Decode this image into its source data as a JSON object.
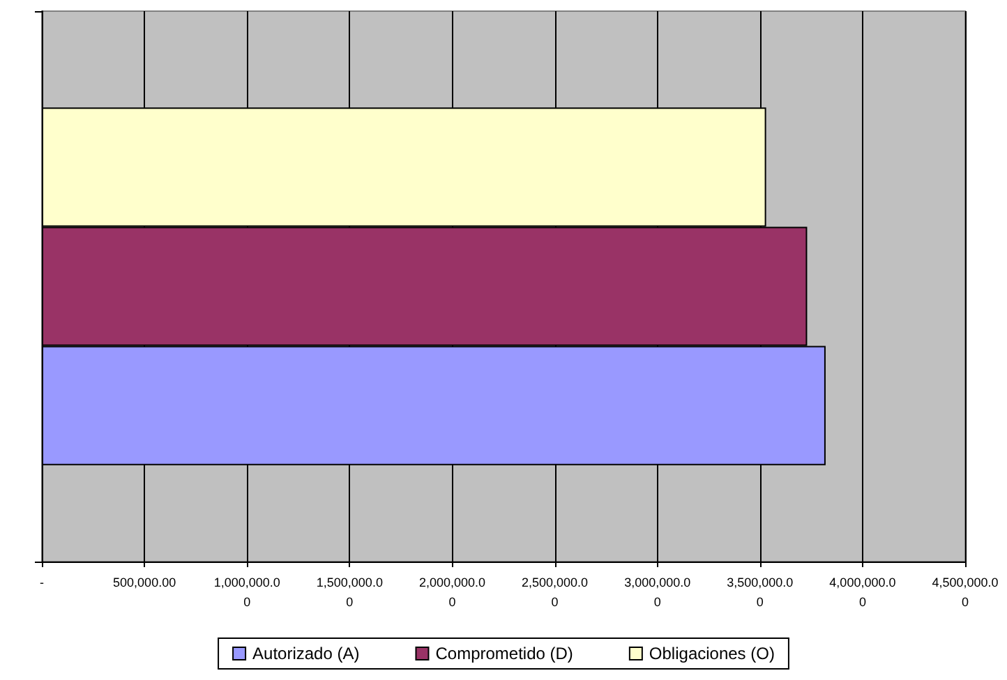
{
  "chart_data": {
    "type": "bar",
    "orientation": "horizontal",
    "categories": [
      null
    ],
    "series": [
      {
        "name": "Autorizado (A)",
        "color": "#9999ff",
        "values": [
          3820000
        ]
      },
      {
        "name": "Comprometido (D)",
        "color": "#993366",
        "values": [
          3730000
        ]
      },
      {
        "name": "Obligaciones (O)",
        "color": "#ffffcc",
        "values": [
          3530000
        ]
      }
    ],
    "xlim": [
      0,
      4500000
    ],
    "xticks": [
      {
        "value": 0,
        "label": "-"
      },
      {
        "value": 500000,
        "label": "500,000.00"
      },
      {
        "value": 1000000,
        "label": "1,000,000.00"
      },
      {
        "value": 1500000,
        "label": "1,500,000.00"
      },
      {
        "value": 2000000,
        "label": "2,000,000.00"
      },
      {
        "value": 2500000,
        "label": "2,500,000.00"
      },
      {
        "value": 3000000,
        "label": "3,000,000.00"
      },
      {
        "value": 3500000,
        "label": "3,500,000.00"
      },
      {
        "value": 4000000,
        "label": "4,000,000.00"
      },
      {
        "value": 4500000,
        "label": "4,500,000.00"
      }
    ],
    "grid": "x",
    "legend": "bottom"
  }
}
